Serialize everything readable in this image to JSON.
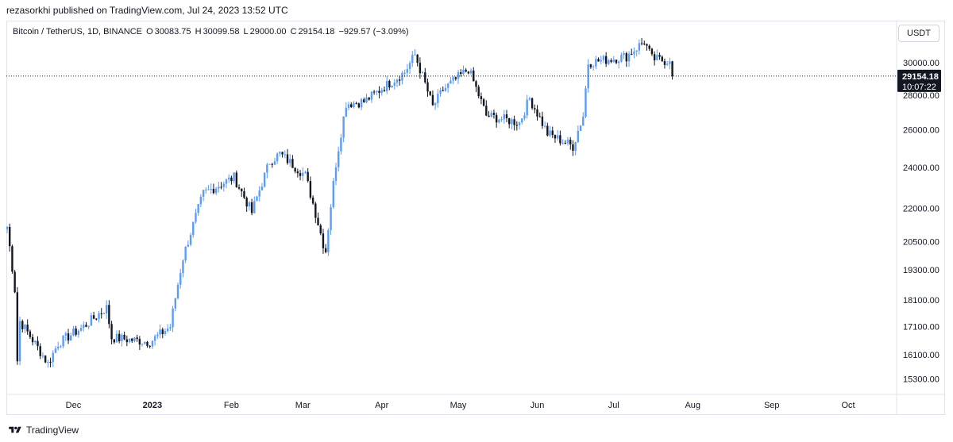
{
  "header": {
    "publisher": "rezasorkhi published on TradingView.com, Jul 24, 2023 13:52 UTC"
  },
  "legend": {
    "symbol": "Bitcoin / TetherUS, 1D, BINANCE",
    "open_label": "O",
    "open": "30083.75",
    "high_label": "H",
    "high": "30099.58",
    "low_label": "L",
    "low": "29000.00",
    "close_label": "C",
    "close": "29154.18",
    "change": "−929.57 (−3.09%)"
  },
  "currency_button": "USDT",
  "price_badge": {
    "price": "29154.18",
    "countdown": "10:07:22"
  },
  "footer": {
    "brand": "TradingView",
    "logo_icon": "tradingview-logo-icon"
  },
  "colors": {
    "up": "#5b9cf6",
    "down": "#131722",
    "grid": "#e0e3eb",
    "badge_bg": "#131722",
    "badge_text": "#ffffff"
  },
  "chart_data": {
    "type": "candlestick",
    "title": "Bitcoin / TetherUS, 1D, BINANCE",
    "scale": "log",
    "grid": false,
    "current_price": 29154.18,
    "y_tick_labels": [
      "30000.00",
      "28000.00",
      "26000.00",
      "24000.00",
      "22000.00",
      "20500.00",
      "19300.00",
      "18100.00",
      "17100.00",
      "16100.00",
      "15300.00"
    ],
    "y_ticks": [
      30000,
      28000,
      26000,
      24000,
      22000,
      20500,
      19300,
      18100,
      17100,
      16100,
      15300
    ],
    "x_tick_labels": [
      "Dec",
      "2023",
      "Feb",
      "Mar",
      "Apr",
      "May",
      "Jun",
      "Jul",
      "Aug",
      "Sep",
      "Oct"
    ],
    "x_ticks": [
      "2022-12-01",
      "2023-01-01",
      "2023-02-01",
      "2023-03-01",
      "2023-04-01",
      "2023-05-01",
      "2023-06-01",
      "2023-07-01",
      "2023-08-01",
      "2023-09-01",
      "2023-10-01"
    ],
    "x_range": [
      "2022-11-05",
      "2023-10-20"
    ],
    "y_range": [
      14800,
      32700
    ],
    "close_anchors": [
      [
        "2022-11-05",
        21150
      ],
      [
        "2022-11-08",
        18500
      ],
      [
        "2022-11-09",
        15900
      ],
      [
        "2022-11-10",
        17300
      ],
      [
        "2022-11-21",
        15800
      ],
      [
        "2022-11-25",
        16500
      ],
      [
        "2022-12-05",
        17100
      ],
      [
        "2022-12-14",
        17800
      ],
      [
        "2022-12-16",
        16700
      ],
      [
        "2022-12-31",
        16550
      ],
      [
        "2023-01-08",
        17100
      ],
      [
        "2023-01-13",
        19800
      ],
      [
        "2023-01-21",
        22700
      ],
      [
        "2023-02-02",
        23500
      ],
      [
        "2023-02-09",
        21800
      ],
      [
        "2023-02-16",
        24300
      ],
      [
        "2023-02-20",
        24700
      ],
      [
        "2023-03-02",
        23600
      ],
      [
        "2023-03-09",
        20400
      ],
      [
        "2023-03-10",
        20100
      ],
      [
        "2023-03-14",
        24200
      ],
      [
        "2023-03-18",
        27500
      ],
      [
        "2023-03-25",
        27600
      ],
      [
        "2023-04-10",
        29400
      ],
      [
        "2023-04-14",
        30500
      ],
      [
        "2023-04-21",
        27300
      ],
      [
        "2023-04-25",
        28300
      ],
      [
        "2023-05-05",
        29600
      ],
      [
        "2023-05-12",
        26800
      ],
      [
        "2023-05-25",
        26400
      ],
      [
        "2023-05-29",
        27800
      ],
      [
        "2023-06-05",
        25800
      ],
      [
        "2023-06-15",
        25100
      ],
      [
        "2023-06-19",
        26800
      ],
      [
        "2023-06-21",
        30000
      ],
      [
        "2023-07-06",
        30400
      ],
      [
        "2023-07-13",
        31400
      ],
      [
        "2023-07-16",
        30250
      ],
      [
        "2023-07-23",
        30083.75
      ],
      [
        "2023-07-24",
        29154.18
      ]
    ]
  }
}
